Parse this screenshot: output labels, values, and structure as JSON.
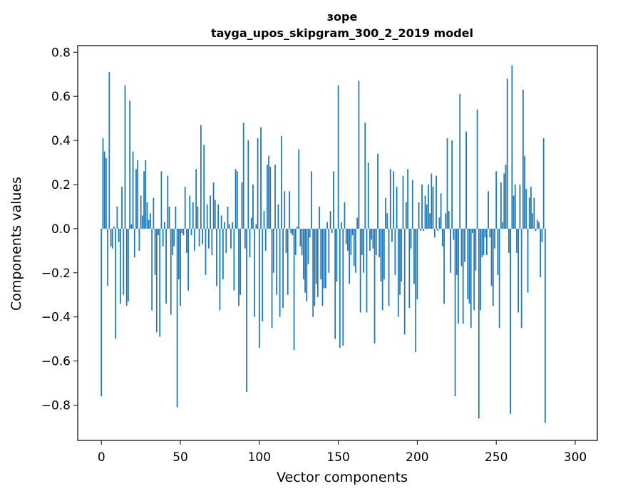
{
  "chart_data": {
    "type": "bar",
    "title": "зоре",
    "subtitle": "tayga_upos_skipgram_300_2_2019 model",
    "xlabel": "Vector components",
    "ylabel": "Components values",
    "xlim": [
      -15,
      314
    ],
    "ylim": [
      -0.96,
      0.83
    ],
    "xticks": [
      0,
      50,
      100,
      150,
      200,
      250,
      300
    ],
    "yticks": [
      -0.8,
      -0.6,
      -0.4,
      -0.2,
      0.0,
      0.2,
      0.4,
      0.6,
      0.8
    ],
    "ytick_labels": [
      "−0.8",
      "−0.6",
      "−0.4",
      "−0.2",
      "0.0",
      "0.2",
      "0.4",
      "0.6",
      "0.8"
    ],
    "bar_color": "#1f77b4",
    "values": [
      -0.76,
      0.41,
      0.35,
      0.32,
      -0.26,
      0.71,
      -0.08,
      -0.09,
      0.01,
      -0.5,
      0.1,
      -0.06,
      -0.34,
      0.19,
      -0.3,
      0.65,
      -0.35,
      -0.33,
      0.58,
      0.02,
      0.35,
      -0.13,
      0.27,
      0.31,
      -0.1,
      0.15,
      0.06,
      0.26,
      0.31,
      0.12,
      0.04,
      0.07,
      -0.37,
      0.14,
      -0.21,
      -0.47,
      -0.03,
      -0.49,
      0.26,
      -0.08,
      0.03,
      -0.34,
      0.24,
      0.1,
      -0.39,
      -0.12,
      -0.08,
      0.1,
      -0.81,
      -0.23,
      -0.35,
      -0.02,
      -0.03,
      0.19,
      -0.11,
      -0.28,
      0.15,
      -0.03,
      0.12,
      -0.1,
      0.27,
      0.1,
      -0.08,
      0.47,
      -0.07,
      0.38,
      -0.21,
      0.11,
      -0.09,
      0.15,
      -0.12,
      0.21,
      0.13,
      -0.26,
      0.11,
      -0.37,
      0.06,
      -0.23,
      0.03,
      -0.11,
      0.1,
      0.02,
      -0.09,
      0.03,
      -0.28,
      0.27,
      0.26,
      -0.35,
      -0.3,
      0.21,
      0.48,
      -0.09,
      -0.74,
      0.4,
      -0.13,
      0.05,
      0.2,
      -0.4,
      0.02,
      0.41,
      -0.54,
      0.46,
      -0.42,
      0.08,
      -0.1,
      0.29,
      0.33,
      0.28,
      -0.45,
      -0.2,
      0.29,
      -0.3,
      0.11,
      -0.4,
      0.42,
      -0.36,
      0.17,
      -0.11,
      -0.3,
      0.17,
      -0.02,
      -0.03,
      -0.55,
      -0.12,
      0.01,
      0.36,
      -0.08,
      -0.12,
      -0.23,
      -0.29,
      -0.33,
      -0.16,
      -0.04,
      0.26,
      -0.4,
      -0.35,
      -0.25,
      -0.31,
      0.1,
      -0.23,
      -0.35,
      -0.27,
      -0.27,
      0.03,
      -0.2,
      0.08,
      -0.02,
      0.26,
      -0.5,
      -0.24,
      0.65,
      -0.54,
      0.03,
      -0.53,
      0.12,
      -0.07,
      -0.1,
      -0.25,
      -0.12,
      -0.03,
      -0.17,
      -0.2,
      0.05,
      0.67,
      -0.38,
      -0.12,
      -0.2,
      0.48,
      -0.38,
      0.3,
      -0.1,
      -0.05,
      -0.09,
      -0.52,
      -0.12,
      0.34,
      -0.13,
      -0.24,
      -0.37,
      -0.23,
      0.14,
      0.07,
      -0.35,
      0.27,
      -0.06,
      0.26,
      -0.21,
      0.19,
      -0.4,
      -0.3,
      -0.24,
      0.24,
      -0.48,
      0.12,
      0.27,
      -0.36,
      -0.09,
      0.22,
      -0.25,
      -0.56,
      -0.32,
      0.12,
      -0.01,
      0.2,
      -0.01,
      0.15,
      0.11,
      0.2,
      0.07,
      0.25,
      0.19,
      -0.04,
      0.24,
      -0.01,
      0.05,
      0.16,
      -0.08,
      -0.34,
      0.07,
      0.41,
      0.08,
      -0.2,
      0.4,
      -0.05,
      -0.76,
      -0.21,
      -0.43,
      0.61,
      -0.17,
      -0.43,
      -0.15,
      0.44,
      -0.32,
      -0.34,
      -0.45,
      -0.02,
      -0.37,
      -0.19,
      0.54,
      -0.86,
      -0.37,
      -0.13,
      -0.12,
      -0.04,
      -0.12,
      0.17,
      -0.04,
      -0.26,
      -0.35,
      -0.09,
      0.26,
      -0.21,
      -0.45,
      0.21,
      0.03,
      0.25,
      0.29,
      0.68,
      -0.11,
      -0.84,
      0.74,
      0.15,
      0.2,
      -0.11,
      -0.38,
      0.2,
      -0.45,
      0.63,
      0.33,
      0.18,
      -0.29,
      0.14,
      0.19,
      0.07,
      0.14,
      -0.01,
      0.04,
      0.03,
      -0.22,
      -0.06,
      0.41,
      -0.88
    ]
  }
}
